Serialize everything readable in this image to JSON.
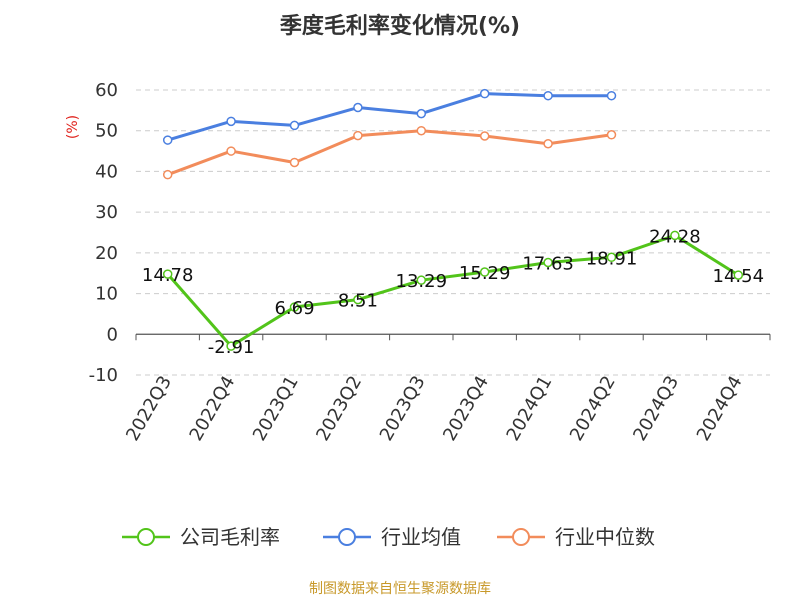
{
  "chart_data": {
    "type": "line",
    "title": "季度毛利率变化情况(%)",
    "ylabel": "(%)",
    "categories": [
      "2022Q3",
      "2022Q4",
      "2023Q1",
      "2023Q2",
      "2023Q3",
      "2023Q4",
      "2024Q1",
      "2024Q2",
      "2024Q3",
      "2024Q4"
    ],
    "ylim": [
      -10,
      60
    ],
    "yticks": [
      -10,
      0,
      10,
      20,
      30,
      40,
      50,
      60
    ],
    "grid": true,
    "legend_position": "bottom",
    "series": [
      {
        "name": "公司毛利率",
        "color": "#52c41a",
        "labels": true,
        "values": [
          14.78,
          -2.91,
          6.69,
          8.51,
          13.29,
          15.29,
          17.63,
          18.91,
          24.28,
          14.54
        ]
      },
      {
        "name": "行业均值",
        "color": "#4a7fe0",
        "labels": false,
        "values": [
          47.7,
          52.3,
          51.3,
          55.7,
          54.2,
          59.1,
          58.6,
          58.6,
          null,
          null
        ]
      },
      {
        "name": "行业中位数",
        "color": "#f28c5b",
        "labels": false,
        "values": [
          39.2,
          45.0,
          42.2,
          48.8,
          50.0,
          48.7,
          46.8,
          49.0,
          null,
          null
        ]
      }
    ]
  },
  "source_note": "制图数据来自恒生聚源数据库"
}
